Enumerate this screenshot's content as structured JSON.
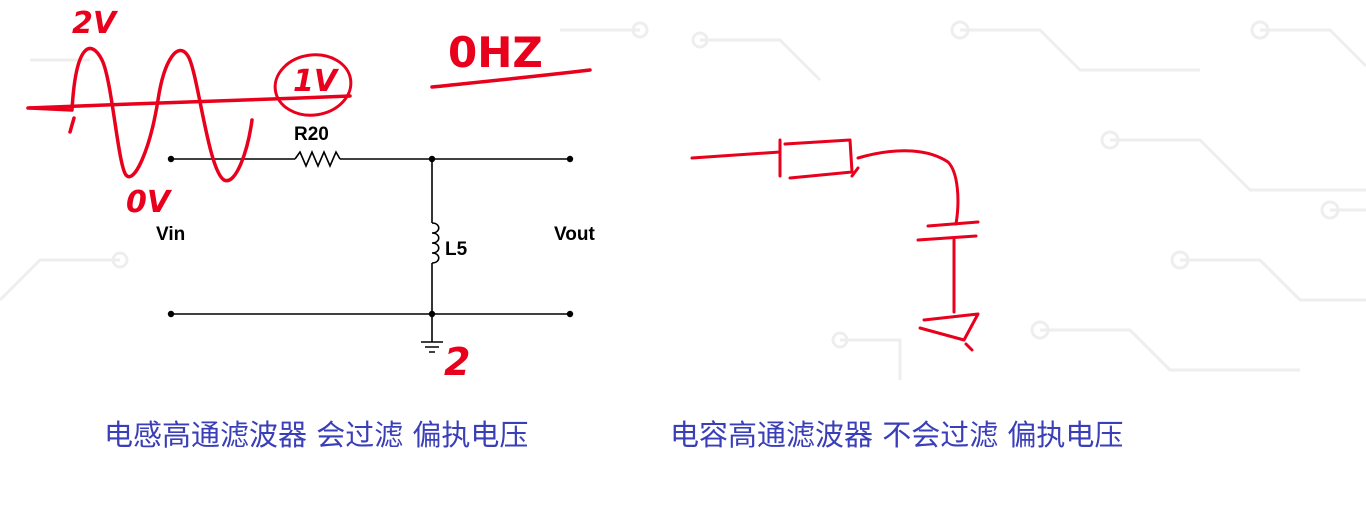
{
  "schematic": {
    "resistor_label": "R20",
    "inductor_label": "L5",
    "input_label": "Vin",
    "output_label": "Vout"
  },
  "annotations": {
    "peak_voltage": "2V",
    "low_voltage": "0V",
    "bias_voltage": "1V",
    "frequency_note": "0HZ",
    "ground_note": "2"
  },
  "captions": {
    "left": "电感高通滤波器 会过滤 偏执电压",
    "right": "电容高通滤波器 不会过滤 偏执电压"
  },
  "colors": {
    "ink": "#e8001c",
    "caption": "#3a3fb8",
    "wire": "#000000",
    "background_pattern": "#eeeeee"
  }
}
